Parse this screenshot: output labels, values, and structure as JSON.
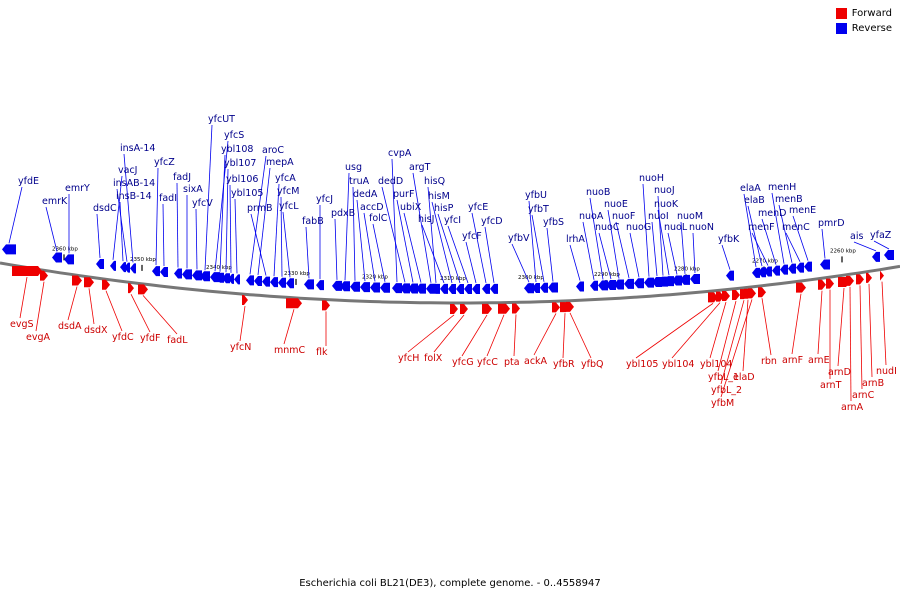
{
  "legend": {
    "forward_label": "Forward",
    "reverse_label": "Reverse",
    "forward_color": "#ee0000",
    "reverse_color": "#0000ee"
  },
  "caption": "Escherichia coli BL21(DE3), complete genome. - 0..4558947",
  "ticks": [
    "2360 kbp",
    "2350 kbp",
    "2340 kbp",
    "2330 kbp",
    "2320 kbp",
    "2310 kbp",
    "2300 kbp",
    "2290 kbp",
    "2280 kbp",
    "2270 kbp",
    "2260 kbp"
  ],
  "reverse_genes": [
    "yfdE",
    "emrK",
    "emrY",
    "dsdC",
    "vacJ",
    "insB-14",
    "insAB-14",
    "insA-14",
    "yfcZ",
    "fadI",
    "fadJ",
    "sixA",
    "yfcV",
    "yfcUT",
    "yfcS",
    "ybl108",
    "ybl107",
    "ybl106",
    "ybl105",
    "aroC",
    "mepA",
    "prmB",
    "yfcA",
    "yfcM",
    "yfcL",
    "fabB",
    "yfcJ",
    "pdxB",
    "usg",
    "truA",
    "dedA",
    "accD",
    "folC",
    "cvpA",
    "dedD",
    "purF",
    "ubiX",
    "argT",
    "hisQ",
    "hisJ",
    "hisM",
    "hisP",
    "yfcI",
    "yfcF",
    "yfcE",
    "yfcD",
    "yfbV",
    "yfbU",
    "yfbT",
    "yfbS",
    "lrhA",
    "nuoA",
    "nuoB",
    "nuoC",
    "nuoE",
    "nuoF",
    "nuoG",
    "nuoH",
    "nuoI",
    "nuoJ",
    "nuoK",
    "nuoL",
    "nuoM",
    "nuoN",
    "yfbK",
    "elaA",
    "elaB",
    "menF",
    "menD",
    "menH",
    "menB",
    "menC",
    "menE",
    "pmrD",
    "ais",
    "yfaZ"
  ],
  "forward_genes": [
    "evgS",
    "evgA",
    "dsdA",
    "dsdX",
    "yfdC",
    "yfdF",
    "fadL",
    "yfcN",
    "mnmC",
    "flk",
    "yfcH",
    "folX",
    "yfcG",
    "yfcC",
    "pta",
    "ackA",
    "yfbR",
    "yfbQ",
    "ybl105",
    "ybl104",
    "ybl104",
    "yfbL_1",
    "yfbL_2",
    "yfbM",
    "elaD",
    "rbn",
    "arnF",
    "arnE",
    "arnT",
    "arnD",
    "arnA",
    "arnC",
    "arnB",
    "nudI"
  ]
}
